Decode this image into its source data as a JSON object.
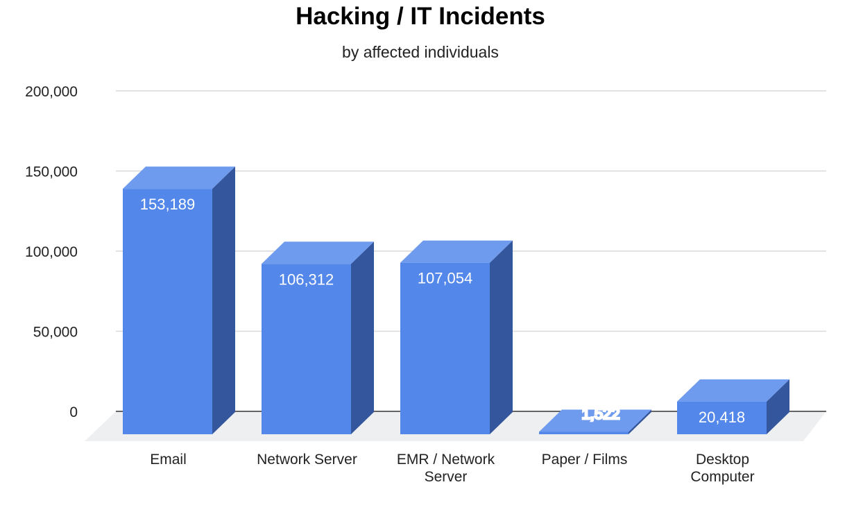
{
  "chart_data": {
    "type": "bar",
    "style": "3d-column",
    "title": "Hacking / IT Incidents",
    "subtitle": "by affected individuals",
    "xlabel": "",
    "ylabel": "",
    "categories": [
      "Email",
      "Network Server",
      "EMR / Network Server",
      "Paper / Films",
      "Desktop Computer"
    ],
    "category_lines": [
      [
        "Email"
      ],
      [
        "Network Server"
      ],
      [
        "EMR / Network",
        "Server"
      ],
      [
        "Paper / Films"
      ],
      [
        "Desktop",
        "Computer"
      ]
    ],
    "values": [
      153189,
      106312,
      107054,
      1522,
      20418
    ],
    "value_labels": [
      "153,189",
      "106,312",
      "107,054",
      "1,522",
      "20,418"
    ],
    "ylim": [
      0,
      200000
    ],
    "yticks": [
      0,
      50000,
      100000,
      150000,
      200000
    ],
    "ytick_labels": [
      "0",
      "50,000",
      "100,000",
      "150,000",
      "200,000"
    ],
    "grid": true,
    "legend": "none",
    "colors": {
      "bar_front": "#5387E9",
      "bar_top": "#6E9BEE",
      "bar_side": "#34569C",
      "floor": "#EEEFF1",
      "grid": "#D9D9D9",
      "baseline": "#333333"
    }
  }
}
